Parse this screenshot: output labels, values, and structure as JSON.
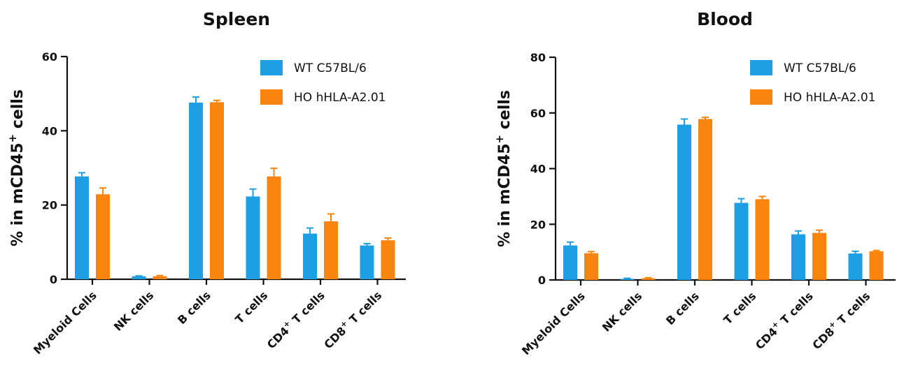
{
  "colors": {
    "wt": "#1e9fe3",
    "ho": "#f98410"
  },
  "chart_data": [
    {
      "type": "bar",
      "title": "Spleen",
      "ylabel_main": "% in mCD45",
      "ylabel_sup": "+",
      "ylabel_tail": " cells",
      "ylim": [
        0,
        60
      ],
      "yticks": [
        0,
        20,
        40,
        60
      ],
      "legend_position": "top-right",
      "categories": [
        {
          "main": "Myeloid Cells",
          "sup": "",
          "tail": ""
        },
        {
          "main": "NK cells",
          "sup": "",
          "tail": ""
        },
        {
          "main": "B cells",
          "sup": "",
          "tail": ""
        },
        {
          "main": "T cells",
          "sup": "",
          "tail": ""
        },
        {
          "main": "CD4",
          "sup": "+",
          "tail": " T cells"
        },
        {
          "main": "CD8",
          "sup": "+",
          "tail": "  T cells"
        }
      ],
      "series": [
        {
          "name": "WT C57BL/6",
          "color_key": "wt",
          "values": [
            27.7,
            0.8,
            47.6,
            22.3,
            12.3,
            9.1
          ],
          "errors": [
            1.0,
            0.1,
            1.5,
            2.0,
            1.5,
            0.5
          ]
        },
        {
          "name": "HO hHLA-A2.01",
          "color_key": "ho",
          "values": [
            22.9,
            0.8,
            47.7,
            27.7,
            15.6,
            10.5
          ],
          "errors": [
            1.7,
            0.2,
            0.5,
            2.2,
            2.0,
            0.6
          ]
        }
      ]
    },
    {
      "type": "bar",
      "title": "Blood",
      "ylabel_main": "% in mCD45",
      "ylabel_sup": "+",
      "ylabel_tail": " cells",
      "ylim": [
        0,
        80
      ],
      "yticks": [
        0,
        20,
        40,
        60,
        80
      ],
      "legend_position": "top-right",
      "categories": [
        {
          "main": "Myeloid Cells",
          "sup": "",
          "tail": ""
        },
        {
          "main": "NK cells",
          "sup": "",
          "tail": ""
        },
        {
          "main": "B cells",
          "sup": "",
          "tail": ""
        },
        {
          "main": "T cells",
          "sup": "",
          "tail": ""
        },
        {
          "main": "CD4",
          "sup": "+",
          "tail": " T cells"
        },
        {
          "main": "CD8",
          "sup": "+",
          "tail": "  T cells"
        }
      ],
      "series": [
        {
          "name": "WT C57BL/6",
          "color_key": "wt",
          "values": [
            12.4,
            0.4,
            55.8,
            27.7,
            16.4,
            9.5
          ],
          "errors": [
            1.2,
            0.2,
            2.0,
            1.5,
            1.2,
            0.8
          ]
        },
        {
          "name": "HO hHLA-A2.01",
          "color_key": "ho",
          "values": [
            9.6,
            0.6,
            57.8,
            29.0,
            16.9,
            10.3
          ],
          "errors": [
            0.6,
            0.2,
            0.6,
            1.0,
            1.0,
            0.3
          ]
        }
      ]
    }
  ]
}
